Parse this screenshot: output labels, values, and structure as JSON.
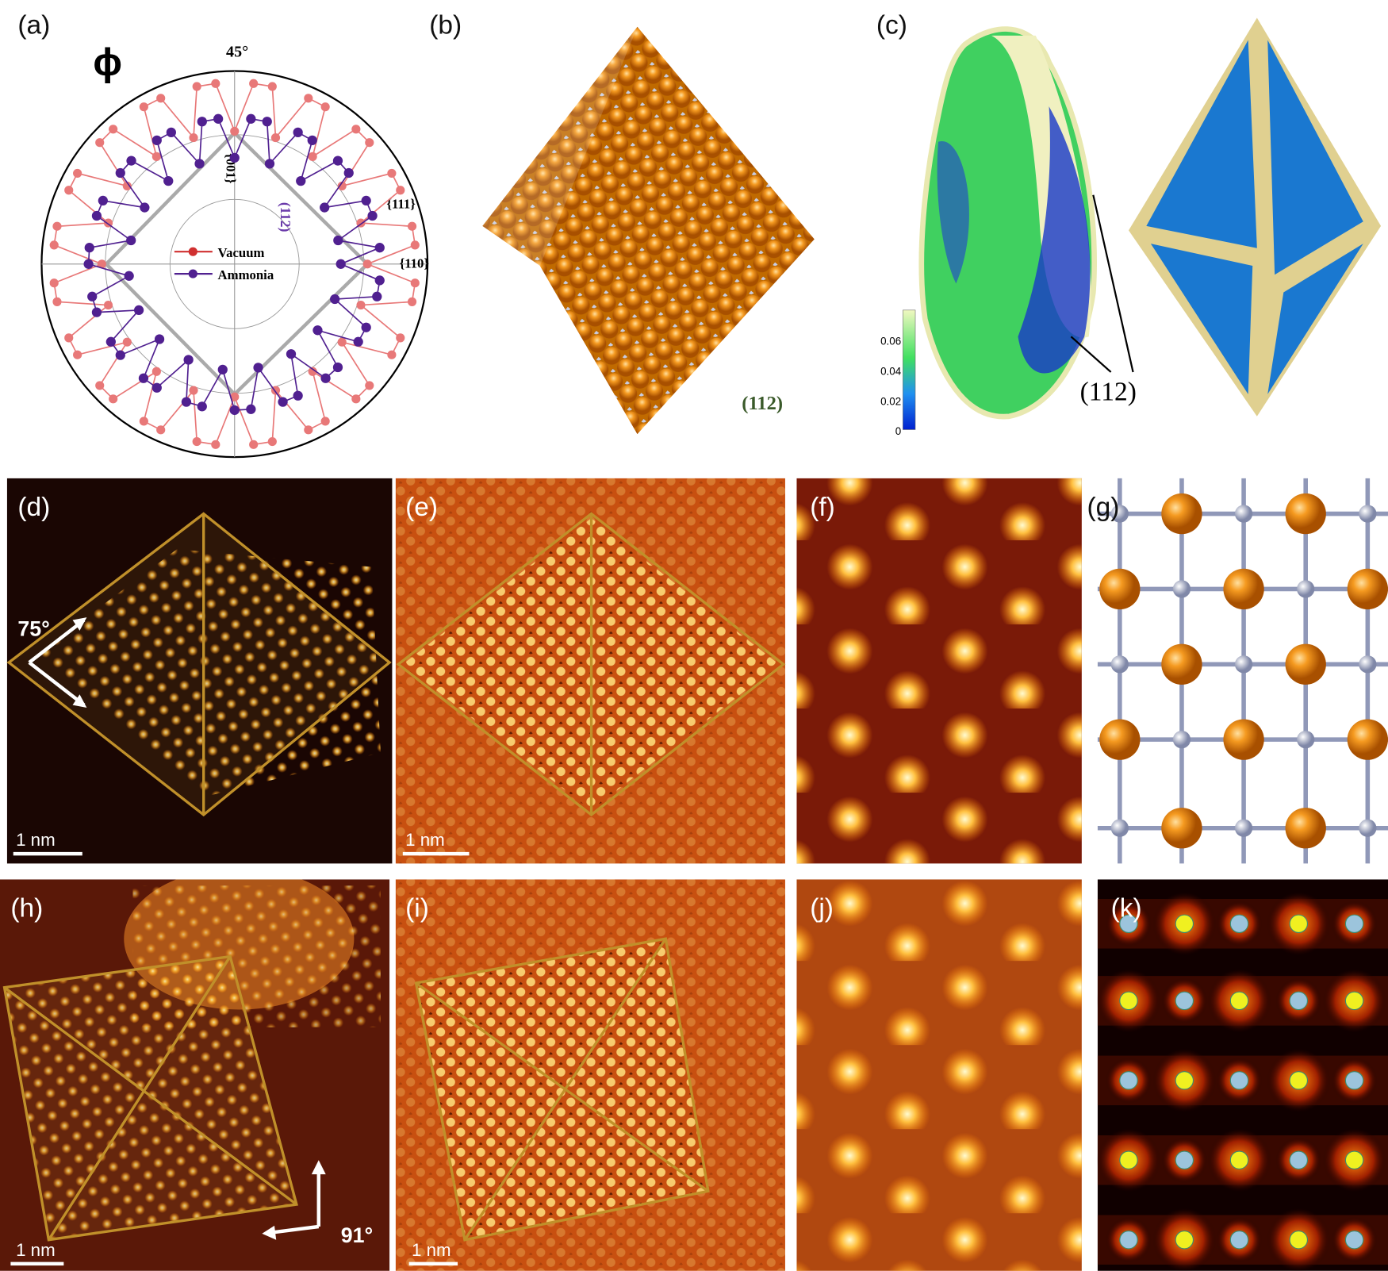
{
  "panels": {
    "a": {
      "label": "(a)",
      "symbol": "ϕ",
      "angle": "45°",
      "facets": [
        "{001}",
        "(112)",
        "{111}",
        "{110}"
      ],
      "legend": [
        "Vacuum",
        "Ammonia"
      ]
    },
    "b": {
      "label": "(b)",
      "facet": "(112)"
    },
    "c": {
      "label": "(c)",
      "colorbar_ticks": [
        0.06,
        0.04,
        0.02,
        0
      ],
      "facet": "(112)"
    },
    "d": {
      "label": "(d)",
      "angle": "75°",
      "scale_bar": "1 nm"
    },
    "e": {
      "label": "(e)",
      "scale_bar": "1 nm"
    },
    "f": {
      "label": "(f)"
    },
    "g": {
      "label": "(g)"
    },
    "h": {
      "label": "(h)",
      "angle": "91°",
      "scale_bar": "1 nm"
    },
    "i": {
      "label": "(i)",
      "scale_bar": "1 nm"
    },
    "j": {
      "label": "(j)"
    },
    "k": {
      "label": "(k)"
    }
  }
}
